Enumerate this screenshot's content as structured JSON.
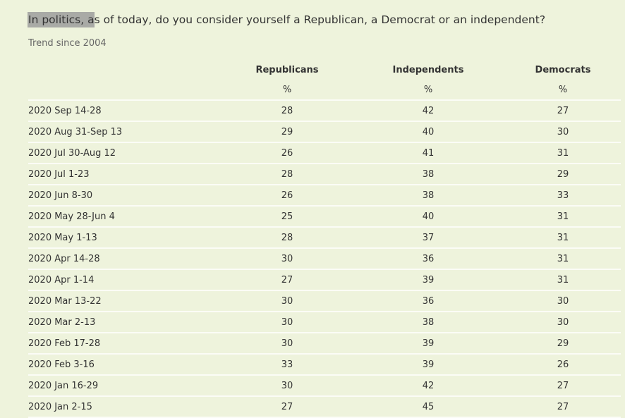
{
  "title": "In politics, as of today, do you consider yourself a Republican, a Democrat or an independent?",
  "subtitle": "Trend since 2004",
  "table": {
    "columns": [
      "Republicans",
      "Independents",
      "Democrats"
    ],
    "units": [
      "%",
      "%",
      "%"
    ],
    "rows": [
      [
        "2020 Sep 14-28",
        28,
        42,
        27
      ],
      [
        "2020 Aug 31-Sep 13",
        29,
        40,
        30
      ],
      [
        "2020 Jul 30-Aug 12",
        26,
        41,
        31
      ],
      [
        "2020 Jul 1-23",
        28,
        38,
        29
      ],
      [
        "2020 Jun 8-30",
        26,
        38,
        33
      ],
      [
        "2020 May 28-Jun 4",
        25,
        40,
        31
      ],
      [
        "2020 May 1-13",
        28,
        37,
        31
      ],
      [
        "2020 Apr 14-28",
        30,
        36,
        31
      ],
      [
        "2020 Apr 1-14",
        27,
        39,
        31
      ],
      [
        "2020 Mar 13-22",
        30,
        36,
        30
      ],
      [
        "2020 Mar 2-13",
        30,
        38,
        30
      ],
      [
        "2020 Feb 17-28",
        30,
        39,
        29
      ],
      [
        "2020 Feb 3-16",
        33,
        39,
        26
      ],
      [
        "2020 Jan 16-29",
        30,
        42,
        27
      ],
      [
        "2020 Jan 2-15",
        27,
        45,
        27
      ]
    ]
  }
}
